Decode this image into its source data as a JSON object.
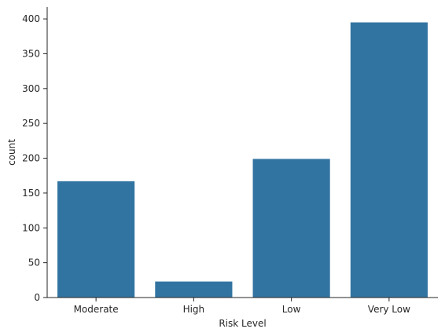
{
  "chart_data": {
    "type": "bar",
    "title": "",
    "xlabel": "Risk Level",
    "ylabel": "count",
    "categories": [
      "Moderate",
      "High",
      "Low",
      "Very Low"
    ],
    "values": [
      167,
      23,
      199,
      395
    ],
    "ylim": [
      0,
      417
    ],
    "yticks": [
      0,
      50,
      100,
      150,
      200,
      250,
      300,
      350,
      400
    ],
    "bar_color": "#3274a1",
    "grid": false,
    "spines": "left-bottom"
  }
}
